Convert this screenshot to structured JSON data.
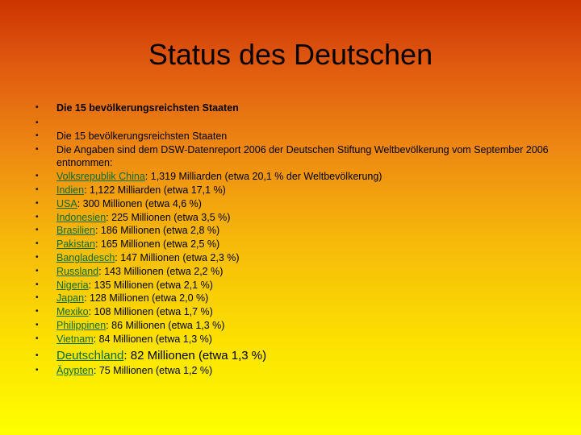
{
  "title": "Status des Deutschen",
  "heading": "Die 15 bevölkerungsreichsten Staaten",
  "stray_link": "",
  "subheading": "Die 15 bevölkerungsreichsten Staaten",
  "source_note": "Die Angaben sind dem DSW-Datenreport 2006 der Deutschen Stiftung Weltbevölkerung vom September 2006 entnommen:",
  "countries": [
    {
      "name": "Volksrepublik China",
      "text": ": 1,319 Milliarden (etwa 20,1 % der Weltbevölkerung)"
    },
    {
      "name": "Indien",
      "text": ": 1,122 Milliarden (etwa 17,1 %)"
    },
    {
      "name": "USA",
      "text": ": 300 Millionen (etwa 4,6 %)"
    },
    {
      "name": "Indonesien",
      "text": ": 225 Millionen (etwa 3,5 %)"
    },
    {
      "name": "Brasilien",
      "text": ": 186 Millionen (etwa 2,8 %)"
    },
    {
      "name": "Pakistan",
      "text": ": 165 Millionen (etwa 2,5 %)"
    },
    {
      "name": "Bangladesch",
      "text": ": 147 Millionen (etwa 2,3 %)"
    },
    {
      "name": "Russland",
      "text": ": 143 Millionen (etwa 2,2 %)"
    },
    {
      "name": "Nigeria",
      "text": ": 135 Millionen (etwa 2,1 %)"
    },
    {
      "name": "Japan",
      "text": ": 128 Millionen (etwa 2,0 %)"
    },
    {
      "name": "Mexiko",
      "text": ": 108 Millionen (etwa 1,7 %)"
    },
    {
      "name": "Philippinen",
      "text": ": 86 Millionen (etwa 1,3 %)"
    },
    {
      "name": "Vietnam",
      "text": ": 84 Millionen (etwa 1,3 %)"
    },
    {
      "name": "Deutschland",
      "text": ": 82 Millionen (etwa 1,3 %)"
    },
    {
      "name": "Ägypten",
      "text": ": 75 Millionen (etwa 1,2 %)"
    }
  ]
}
